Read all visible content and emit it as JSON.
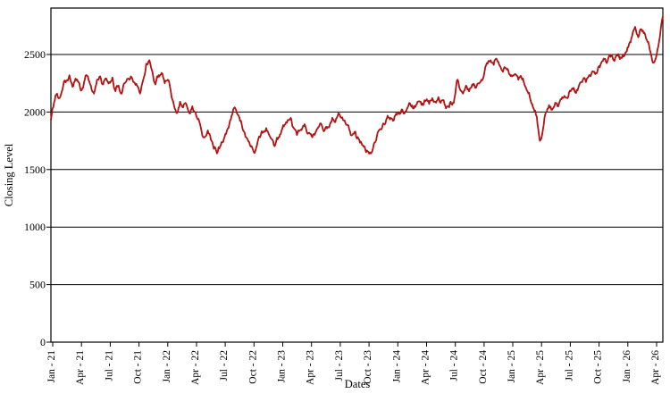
{
  "page": {
    "background_color": "#ffffff",
    "frame_color": "#000000"
  },
  "chart_data": {
    "type": "line",
    "title": "",
    "xlabel": "Dates",
    "ylabel": "Closing Level",
    "ylim": [
      0,
      2890
    ],
    "yticks": [
      0,
      500,
      1000,
      1500,
      2000,
      2500
    ],
    "ytick_labels": [
      "0",
      "500",
      "1000",
      "1500",
      "2000",
      "2500"
    ],
    "grid": "horizontal",
    "legend": "none",
    "line_color": "#b31212",
    "categories": [
      "Jan - 21",
      "Apr - 21",
      "Jul - 21",
      "Oct - 21",
      "Jan - 22",
      "Apr - 22",
      "Jul - 22",
      "Oct - 22",
      "Jan - 23",
      "Apr - 23",
      "Jul - 23",
      "Oct - 23",
      "Jan - 24",
      "Apr - 24",
      "Jul - 24",
      "Oct - 24",
      "Jan - 25",
      "Apr - 25",
      "Jul - 25",
      "Oct - 25",
      "Jan - 26",
      "Apr - 26"
    ],
    "series": [
      {
        "name": "Closing Level",
        "values": [
          1930,
          2080,
          2160,
          2130,
          2230,
          2270,
          2320,
          2220,
          2290,
          2260,
          2190,
          2280,
          2310,
          2230,
          2160,
          2280,
          2310,
          2240,
          2290,
          2260,
          2300,
          2180,
          2230,
          2160,
          2250,
          2290,
          2310,
          2260,
          2230,
          2160,
          2280,
          2420,
          2450,
          2350,
          2240,
          2320,
          2340,
          2250,
          2280,
          2180,
          2060,
          1990,
          2090,
          2040,
          2070,
          1990,
          2050,
          2000,
          1940,
          1830,
          1780,
          1840,
          1760,
          1680,
          1640,
          1700,
          1740,
          1810,
          1890,
          1980,
          2030,
          1970,
          1900,
          1820,
          1760,
          1700,
          1650,
          1710,
          1780,
          1830,
          1860,
          1800,
          1760,
          1720,
          1780,
          1840,
          1890,
          1930,
          1950,
          1860,
          1800,
          1840,
          1880,
          1850,
          1820,
          1780,
          1820,
          1870,
          1890,
          1840,
          1870,
          1910,
          1930,
          1950,
          1970,
          1930,
          1890,
          1850,
          1800,
          1830,
          1770,
          1730,
          1700,
          1660,
          1640,
          1720,
          1790,
          1850,
          1900,
          1930,
          1950,
          1940,
          1970,
          2000,
          2020,
          1990,
          2040,
          2060,
          2030,
          2070,
          2090,
          2060,
          2100,
          2070,
          2120,
          2090,
          2130,
          2100,
          2070,
          2050,
          2090,
          2080,
          2270,
          2200,
          2160,
          2230,
          2180,
          2240,
          2210,
          2250,
          2280,
          2350,
          2420,
          2450,
          2410,
          2460,
          2400,
          2350,
          2380,
          2330,
          2310,
          2330,
          2280,
          2300,
          2240,
          2180,
          2100,
          2030,
          1960,
          1750,
          1850,
          2000,
          2060,
          2020,
          2080,
          2050,
          2110,
          2140,
          2120,
          2180,
          2210,
          2190,
          2250,
          2280,
          2260,
          2320,
          2350,
          2330,
          2390,
          2430,
          2460,
          2440,
          2480,
          2450,
          2490,
          2460,
          2500,
          2520,
          2590,
          2660,
          2740,
          2650,
          2720,
          2690,
          2610,
          2520,
          2430,
          2500,
          2650,
          2830
        ]
      }
    ],
    "render_jitter": {
      "amplitude": 30,
      "seed": 17,
      "subdivisions": 2
    }
  }
}
